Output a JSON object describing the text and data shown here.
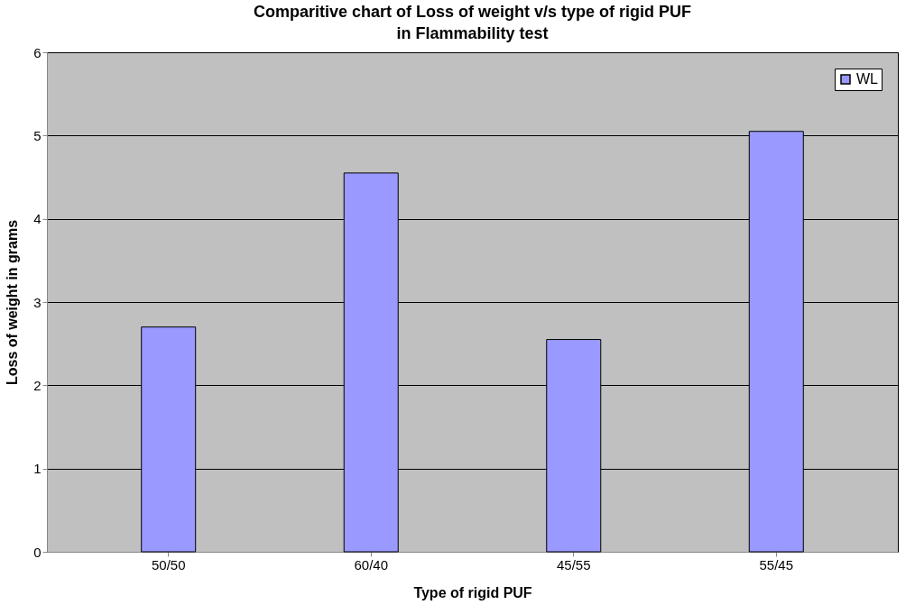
{
  "chart_data": {
    "type": "bar",
    "title": "Comparitive chart of Loss of weight v/s type of rigid PUF in Flammability test",
    "xlabel": "Type of rigid PUF",
    "ylabel": "Loss  of weight in grams",
    "categories": [
      "50/50",
      "60/40",
      "45/55",
      "55/45"
    ],
    "series": [
      {
        "name": "WL",
        "color": "#9999ff",
        "values": [
          2.7,
          4.55,
          2.55,
          5.05
        ]
      }
    ],
    "ylim": [
      0,
      6
    ],
    "yticks": [
      0,
      1,
      2,
      3,
      4,
      5,
      6
    ],
    "grid": "y",
    "legend": "top right"
  }
}
